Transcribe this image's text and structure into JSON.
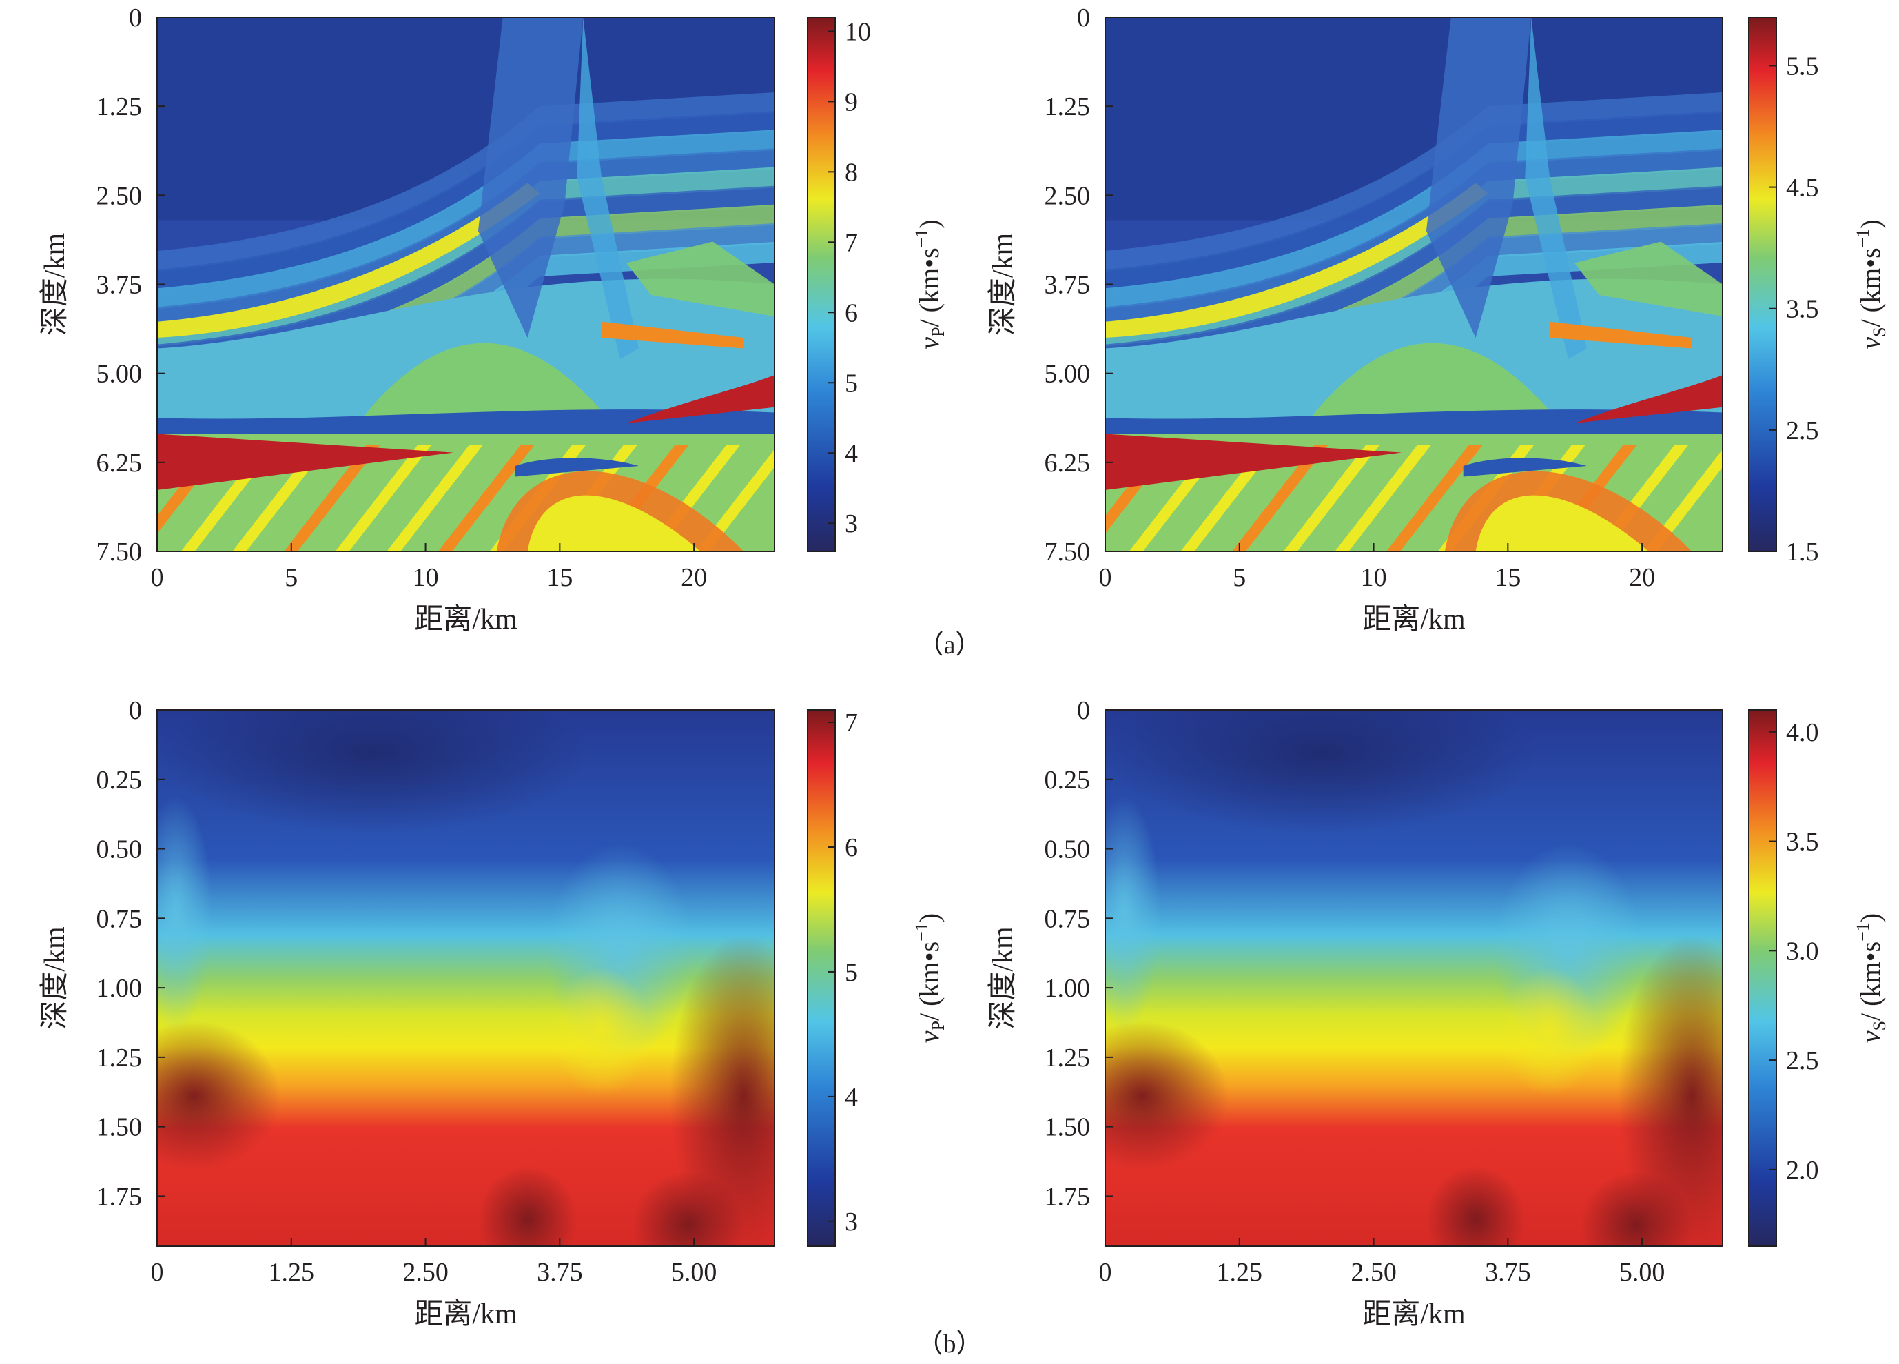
{
  "panel_labels": {
    "a": "（a）",
    "b": "（b）"
  },
  "chart_data": [
    {
      "type": "heatmap",
      "panel": "a-left",
      "xlabel": "距离/km",
      "ylabel": "深度/km",
      "xlim": [
        0,
        23
      ],
      "ylim": [
        7.5,
        0
      ],
      "xticks": [
        "0",
        "5",
        "10",
        "15",
        "20"
      ],
      "xtick_values": [
        0,
        5,
        10,
        15,
        20
      ],
      "yticks": [
        "0",
        "1.25",
        "2.50",
        "3.75",
        "5.00",
        "6.25",
        "7.50"
      ],
      "ytick_values": [
        0,
        1.25,
        2.5,
        3.75,
        5.0,
        6.25,
        7.5
      ],
      "colorbar": {
        "label_main": "v",
        "label_sub": "P",
        "label_unit": "/ (km•s",
        "label_exp": "−1",
        "label_close": ")",
        "range": [
          2.6,
          10.2
        ],
        "ticks": [
          "3",
          "4",
          "5",
          "6",
          "7",
          "8",
          "9",
          "10"
        ],
        "tick_values": [
          3,
          4,
          5,
          6,
          7,
          8,
          9,
          10
        ]
      },
      "model": "layered"
    },
    {
      "type": "heatmap",
      "panel": "a-right",
      "xlabel": "距离/km",
      "ylabel": "深度/km",
      "xlim": [
        0,
        23
      ],
      "ylim": [
        7.5,
        0
      ],
      "xticks": [
        "0",
        "5",
        "10",
        "15",
        "20"
      ],
      "xtick_values": [
        0,
        5,
        10,
        15,
        20
      ],
      "yticks": [
        "0",
        "1.25",
        "2.50",
        "3.75",
        "5.00",
        "6.25",
        "7.50"
      ],
      "ytick_values": [
        0,
        1.25,
        2.5,
        3.75,
        5.0,
        6.25,
        7.5
      ],
      "colorbar": {
        "label_main": "v",
        "label_sub": "S",
        "label_unit": "/ (km•s",
        "label_exp": "−1",
        "label_close": ")",
        "range": [
          1.5,
          5.9
        ],
        "ticks": [
          "1.5",
          "2.5",
          "3.5",
          "4.5",
          "5.5"
        ],
        "tick_values": [
          1.5,
          2.5,
          3.5,
          4.5,
          5.5
        ]
      },
      "model": "layered"
    },
    {
      "type": "heatmap",
      "panel": "b-left",
      "xlabel": "距离/km",
      "ylabel": "深度/km",
      "xlim": [
        0,
        5.75
      ],
      "ylim": [
        1.93,
        0
      ],
      "xticks": [
        "0",
        "1.25",
        "2.50",
        "3.75",
        "5.00"
      ],
      "xtick_values": [
        0,
        1.25,
        2.5,
        3.75,
        5.0
      ],
      "yticks": [
        "0",
        "0.25",
        "0.50",
        "0.75",
        "1.00",
        "1.25",
        "1.50",
        "1.75"
      ],
      "ytick_values": [
        0,
        0.25,
        0.5,
        0.75,
        1.0,
        1.25,
        1.5,
        1.75
      ],
      "colorbar": {
        "label_main": "v",
        "label_sub": "P",
        "label_unit": "/ (km•s",
        "label_exp": "−1",
        "label_close": ")",
        "range": [
          2.8,
          7.1
        ],
        "ticks": [
          "3",
          "4",
          "5",
          "6",
          "7"
        ],
        "tick_values": [
          3,
          4,
          5,
          6,
          7
        ]
      },
      "model": "smooth"
    },
    {
      "type": "heatmap",
      "panel": "b-right",
      "xlabel": "距离/km",
      "ylabel": "深度/km",
      "xlim": [
        0,
        5.75
      ],
      "ylim": [
        1.93,
        0
      ],
      "xticks": [
        "0",
        "1.25",
        "2.50",
        "3.75",
        "5.00"
      ],
      "xtick_values": [
        0,
        1.25,
        2.5,
        3.75,
        5.0
      ],
      "yticks": [
        "0",
        "0.25",
        "0.50",
        "0.75",
        "1.00",
        "1.25",
        "1.50",
        "1.75"
      ],
      "ytick_values": [
        0,
        0.25,
        0.5,
        0.75,
        1.0,
        1.25,
        1.5,
        1.75
      ],
      "colorbar": {
        "label_main": "v",
        "label_sub": "S",
        "label_unit": "/ (km•s",
        "label_exp": "−1",
        "label_close": ")",
        "range": [
          1.65,
          4.1
        ],
        "ticks": [
          "2.0",
          "2.5",
          "3.0",
          "3.5",
          "4.0"
        ],
        "tick_values": [
          2.0,
          2.5,
          3.0,
          3.5,
          4.0
        ]
      },
      "model": "smooth"
    }
  ]
}
